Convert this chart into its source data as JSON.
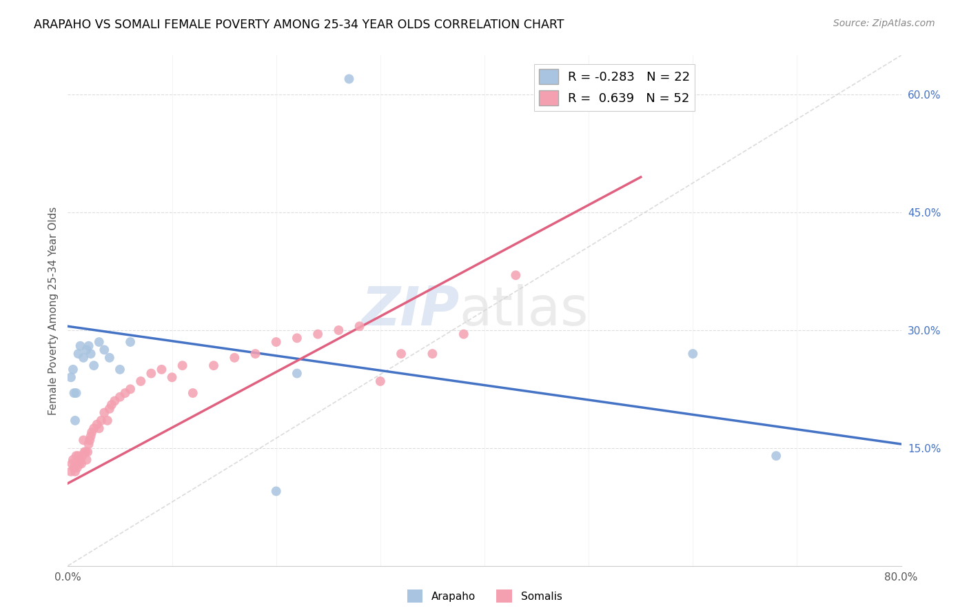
{
  "title": "ARAPAHO VS SOMALI FEMALE POVERTY AMONG 25-34 YEAR OLDS CORRELATION CHART",
  "source": "Source: ZipAtlas.com",
  "ylabel": "Female Poverty Among 25-34 Year Olds",
  "xlim": [
    0.0,
    0.8
  ],
  "ylim": [
    0.0,
    0.65
  ],
  "xticks": [
    0.0,
    0.1,
    0.2,
    0.3,
    0.4,
    0.5,
    0.6,
    0.7,
    0.8
  ],
  "xticklabels": [
    "0.0%",
    "",
    "",
    "",
    "",
    "",
    "",
    "",
    "80.0%"
  ],
  "yticks_right": [
    0.15,
    0.3,
    0.45,
    0.6
  ],
  "yticklabels_right": [
    "15.0%",
    "30.0%",
    "45.0%",
    "60.0%"
  ],
  "arapaho_R": -0.283,
  "arapaho_N": 22,
  "somali_R": 0.639,
  "somali_N": 52,
  "arapaho_color": "#a8c4e0",
  "somali_color": "#f4a0b0",
  "arapaho_line_color": "#4472c4",
  "somali_line_color": "#e06080",
  "diagonal_color": "#cccccc",
  "watermark_zip": "ZIP",
  "watermark_atlas": "atlas",
  "arapaho_x": [
    0.003,
    0.005,
    0.006,
    0.007,
    0.008,
    0.01,
    0.012,
    0.015,
    0.018,
    0.02,
    0.022,
    0.025,
    0.03,
    0.035,
    0.04,
    0.05,
    0.06,
    0.2,
    0.22,
    0.27,
    0.6,
    0.68
  ],
  "arapaho_y": [
    0.24,
    0.25,
    0.22,
    0.185,
    0.22,
    0.27,
    0.28,
    0.265,
    0.275,
    0.28,
    0.27,
    0.255,
    0.285,
    0.275,
    0.265,
    0.25,
    0.285,
    0.095,
    0.245,
    0.62,
    0.27,
    0.14
  ],
  "somali_x": [
    0.003,
    0.004,
    0.005,
    0.006,
    0.007,
    0.008,
    0.009,
    0.01,
    0.011,
    0.012,
    0.013,
    0.014,
    0.015,
    0.016,
    0.017,
    0.018,
    0.019,
    0.02,
    0.021,
    0.022,
    0.023,
    0.025,
    0.028,
    0.03,
    0.032,
    0.035,
    0.038,
    0.04,
    0.042,
    0.045,
    0.05,
    0.055,
    0.06,
    0.07,
    0.08,
    0.09,
    0.1,
    0.11,
    0.12,
    0.14,
    0.16,
    0.18,
    0.2,
    0.22,
    0.24,
    0.26,
    0.28,
    0.3,
    0.32,
    0.35,
    0.38,
    0.43
  ],
  "somali_y": [
    0.12,
    0.13,
    0.135,
    0.125,
    0.12,
    0.14,
    0.125,
    0.14,
    0.13,
    0.135,
    0.13,
    0.14,
    0.16,
    0.145,
    0.145,
    0.135,
    0.145,
    0.155,
    0.16,
    0.165,
    0.17,
    0.175,
    0.18,
    0.175,
    0.185,
    0.195,
    0.185,
    0.2,
    0.205,
    0.21,
    0.215,
    0.22,
    0.225,
    0.235,
    0.245,
    0.25,
    0.24,
    0.255,
    0.22,
    0.255,
    0.265,
    0.27,
    0.285,
    0.29,
    0.295,
    0.3,
    0.305,
    0.235,
    0.27,
    0.27,
    0.295,
    0.37
  ],
  "arapaho_line_x": [
    0.0,
    0.8
  ],
  "arapaho_line_y": [
    0.305,
    0.155
  ],
  "somali_line_x": [
    0.0,
    0.55
  ],
  "somali_line_y": [
    0.105,
    0.495
  ]
}
